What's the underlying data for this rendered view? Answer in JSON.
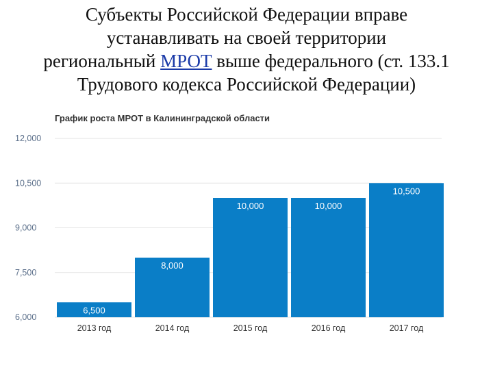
{
  "slide": {
    "title_line1": "Субъекты Российской  Федерации вправе",
    "title_line2": "устанавливать на своей территории",
    "title_line3_pre": "региональный ",
    "title_line3_link": "МРОТ",
    "title_line3_post": " выше федерального (ст. 133.1",
    "title_line4": "Трудового кодекса Российской Федерации)"
  },
  "chart_data": {
    "type": "bar",
    "title": "График роста МРОТ в Калининградской области",
    "categories": [
      "2013 год",
      "2014 год",
      "2015 год",
      "2016 год",
      "2017 год"
    ],
    "values": [
      6500,
      8000,
      10000,
      10000,
      10500
    ],
    "data_labels": [
      "6,500",
      "8,000",
      "10,000",
      "10,000",
      "10,500"
    ],
    "y_ticks": [
      "6,000",
      "7,500",
      "9,000",
      "10,500",
      "12,000"
    ],
    "y_tick_values": [
      6000,
      7500,
      9000,
      10500,
      12000
    ],
    "ylim": [
      6000,
      12000
    ],
    "grid": true,
    "legend": "none",
    "colors": {
      "bar": "#0a7ec7",
      "grid": "#e3e3e3",
      "data_label": "#ffffff"
    }
  }
}
